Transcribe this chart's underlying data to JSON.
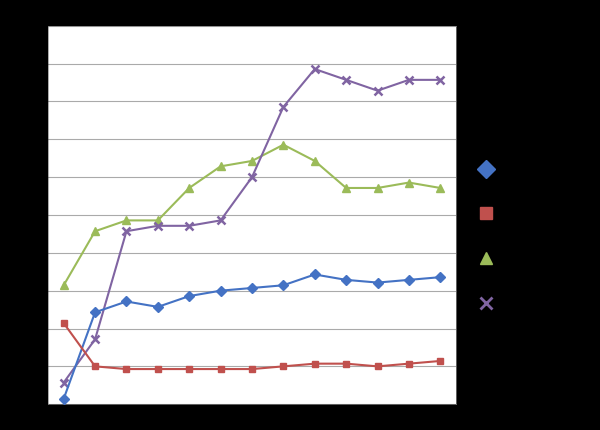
{
  "x": [
    1,
    2,
    3,
    4,
    5,
    6,
    7,
    8,
    9,
    10,
    11,
    12,
    13
  ],
  "blue": [
    1,
    17,
    19,
    18,
    20,
    21,
    21.5,
    22,
    24,
    23,
    22.5,
    23,
    23.5
  ],
  "red": [
    15,
    7,
    6.5,
    6.5,
    6.5,
    6.5,
    6.5,
    7,
    7.5,
    7.5,
    7,
    7.5,
    8
  ],
  "green": [
    22,
    32,
    34,
    34,
    40,
    44,
    45,
    48,
    45,
    40,
    40,
    41,
    40
  ],
  "purple": [
    4,
    12,
    32,
    33,
    33,
    34,
    42,
    55,
    62,
    60,
    58,
    60,
    60
  ],
  "blue_color": "#4472C4",
  "red_color": "#C0504D",
  "green_color": "#9BBB59",
  "purple_color": "#8064A2",
  "bg_color": "#000000",
  "plot_bg_color": "#FFFFFF",
  "ylim": [
    0,
    70
  ],
  "xlim_min": 0.5,
  "xlim_max": 13.5,
  "grid_color": "#AAAAAA",
  "n_gridlines": 10,
  "legend_markers": [
    "D",
    "s",
    "^",
    "x"
  ],
  "legend_colors": [
    "#4472C4",
    "#C0504D",
    "#9BBB59",
    "#8064A2"
  ]
}
